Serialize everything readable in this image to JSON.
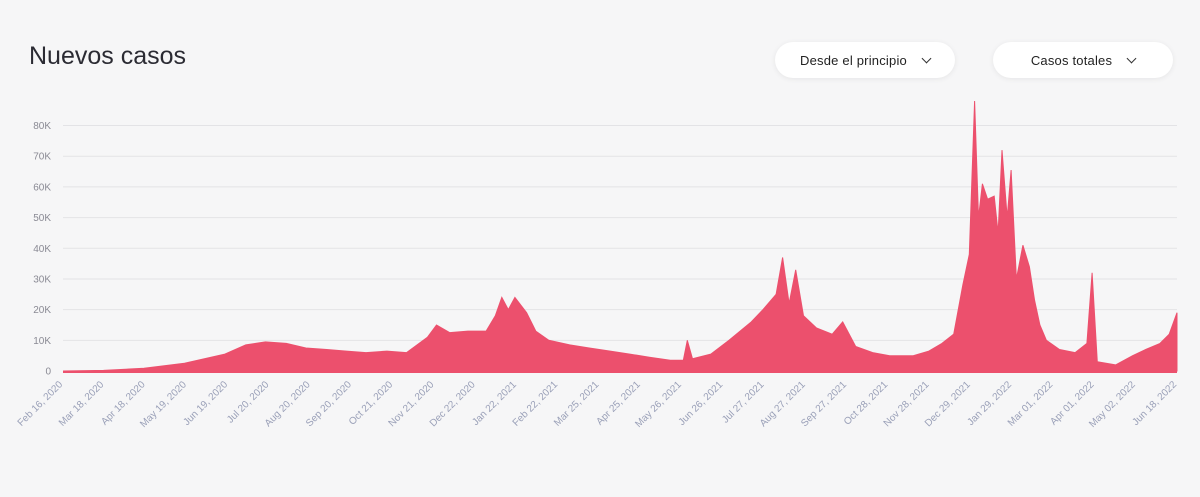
{
  "header": {
    "title": "Nuevos casos",
    "range_selector": "Desde el principio",
    "metric_selector": "Casos totales"
  },
  "icons": {
    "dropdown": "chevron-down-icon"
  },
  "colors": {
    "series": "#ec506d",
    "grid": "#e3e3e6",
    "background": "#f6f6f7"
  },
  "chart_data": {
    "type": "area",
    "title": "Nuevos casos",
    "ylim": [
      0,
      88000
    ],
    "yticks": [
      0,
      10000,
      20000,
      30000,
      40000,
      50000,
      60000,
      70000,
      80000
    ],
    "ytick_labels": [
      "0",
      "10K",
      "20K",
      "30K",
      "40K",
      "50K",
      "60K",
      "70K",
      "80K"
    ],
    "xlim": [
      "2020-02-16",
      "2022-06-18"
    ],
    "xtick_labels": [
      "Feb 16, 2020",
      "Mar 18, 2020",
      "Apr 18, 2020",
      "May 19, 2020",
      "Jun 19, 2020",
      "Jul 20, 2020",
      "Aug 20, 2020",
      "Sep 20, 2020",
      "Oct 21, 2020",
      "Nov 21, 2020",
      "Dec 22, 2020",
      "Jan 22, 2021",
      "Feb 22, 2021",
      "Mar 25, 2021",
      "Apr 25, 2021",
      "May 26, 2021",
      "Jun 26, 2021",
      "Jul 27, 2021",
      "Aug 27, 2021",
      "Sep 27, 2021",
      "Oct 28, 2021",
      "Nov 28, 2021",
      "Dec 29, 2021",
      "Jan 29, 2022",
      "Mar 01, 2022",
      "Apr 01, 2022",
      "May 02, 2022",
      "Jun 18, 2022"
    ],
    "grid": true,
    "series": [
      {
        "points": [
          [
            "2020-02-16",
            0
          ],
          [
            "2020-03-18",
            200
          ],
          [
            "2020-04-18",
            900
          ],
          [
            "2020-05-19",
            2500
          ],
          [
            "2020-06-19",
            5500
          ],
          [
            "2020-07-05",
            8500
          ],
          [
            "2020-07-20",
            9500
          ],
          [
            "2020-08-05",
            9000
          ],
          [
            "2020-08-20",
            7500
          ],
          [
            "2020-09-05",
            7000
          ],
          [
            "2020-09-20",
            6500
          ],
          [
            "2020-10-05",
            6000
          ],
          [
            "2020-10-21",
            6500
          ],
          [
            "2020-11-05",
            6000
          ],
          [
            "2020-11-21",
            11000
          ],
          [
            "2020-11-28",
            15000
          ],
          [
            "2020-12-08",
            12500
          ],
          [
            "2020-12-22",
            13000
          ],
          [
            "2021-01-05",
            13000
          ],
          [
            "2021-01-12",
            18000
          ],
          [
            "2021-01-17",
            24000
          ],
          [
            "2021-01-22",
            20000
          ],
          [
            "2021-01-27",
            24000
          ],
          [
            "2021-02-05",
            19000
          ],
          [
            "2021-02-12",
            13000
          ],
          [
            "2021-02-22",
            10000
          ],
          [
            "2021-03-10",
            8500
          ],
          [
            "2021-03-25",
            7500
          ],
          [
            "2021-04-10",
            6500
          ],
          [
            "2021-04-25",
            5500
          ],
          [
            "2021-05-10",
            4500
          ],
          [
            "2021-05-26",
            3500
          ],
          [
            "2021-06-05",
            3500
          ],
          [
            "2021-06-08",
            10000
          ],
          [
            "2021-06-12",
            4000
          ],
          [
            "2021-06-26",
            5500
          ],
          [
            "2021-07-10",
            10000
          ],
          [
            "2021-07-27",
            16000
          ],
          [
            "2021-08-05",
            20000
          ],
          [
            "2021-08-15",
            25000
          ],
          [
            "2021-08-20",
            37000
          ],
          [
            "2021-08-25",
            22000
          ],
          [
            "2021-08-30",
            33000
          ],
          [
            "2021-09-05",
            18000
          ],
          [
            "2021-09-15",
            14000
          ],
          [
            "2021-09-27",
            12000
          ],
          [
            "2021-10-05",
            16000
          ],
          [
            "2021-10-15",
            8000
          ],
          [
            "2021-10-28",
            6000
          ],
          [
            "2021-11-10",
            5000
          ],
          [
            "2021-11-28",
            5000
          ],
          [
            "2021-12-10",
            6500
          ],
          [
            "2021-12-20",
            9000
          ],
          [
            "2021-12-29",
            12000
          ],
          [
            "2022-01-05",
            28000
          ],
          [
            "2022-01-10",
            38000
          ],
          [
            "2022-01-14",
            88000
          ],
          [
            "2022-01-17",
            50000
          ],
          [
            "2022-01-20",
            61000
          ],
          [
            "2022-01-24",
            56000
          ],
          [
            "2022-01-29",
            57000
          ],
          [
            "2022-02-01",
            45000
          ],
          [
            "2022-02-04",
            72000
          ],
          [
            "2022-02-08",
            50000
          ],
          [
            "2022-02-11",
            65500
          ],
          [
            "2022-02-15",
            30000
          ],
          [
            "2022-02-20",
            41000
          ],
          [
            "2022-02-25",
            34000
          ],
          [
            "2022-03-01",
            23000
          ],
          [
            "2022-03-05",
            15000
          ],
          [
            "2022-03-10",
            10000
          ],
          [
            "2022-03-20",
            7000
          ],
          [
            "2022-04-01",
            6000
          ],
          [
            "2022-04-10",
            9000
          ],
          [
            "2022-04-14",
            32000
          ],
          [
            "2022-04-18",
            3000
          ],
          [
            "2022-05-02",
            2000
          ],
          [
            "2022-05-15",
            5000
          ],
          [
            "2022-05-25",
            7000
          ],
          [
            "2022-06-05",
            9000
          ],
          [
            "2022-06-12",
            12000
          ],
          [
            "2022-06-18",
            19000
          ]
        ]
      }
    ]
  }
}
